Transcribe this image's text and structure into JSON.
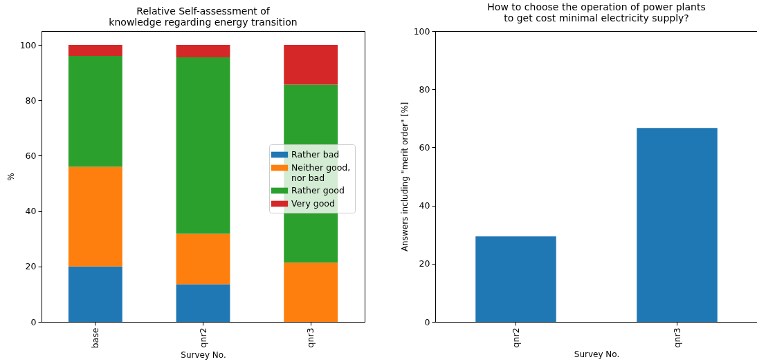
{
  "chart_data": [
    {
      "type": "bar",
      "title": "Relative Self-assessment of\nknowledge regarding energy transition",
      "xlabel": "Survey No.",
      "ylabel": "%",
      "categories": [
        "base",
        "qnr2",
        "qnr3"
      ],
      "stacked": true,
      "series": [
        {
          "name": "Rather bad",
          "color": "#1f77b4",
          "values": [
            20,
            13.6,
            0
          ]
        },
        {
          "name": "Neither good,\n nor bad",
          "color": "#ff7f0e",
          "values": [
            36,
            18.2,
            21.4
          ]
        },
        {
          "name": "Rather good",
          "color": "#2ca02c",
          "values": [
            40,
            63.7,
            64.3
          ]
        },
        {
          "name": "Very good",
          "color": "#d62728",
          "values": [
            4,
            4.5,
            14.3
          ]
        }
      ],
      "ylim": [
        0,
        105
      ],
      "yticks": [
        0,
        20,
        40,
        60,
        80,
        100
      ],
      "legend": "right"
    },
    {
      "type": "bar",
      "title": "How to choose the operation of power plants\nto get cost minimal electricity supply?",
      "xlabel": "Survey No.",
      "ylabel": "Answers including \"merit order\" [%]",
      "categories": [
        "qnr2",
        "qnr3"
      ],
      "values": [
        29.4,
        66.7
      ],
      "color": "#1f77b4",
      "ylim": [
        0,
        100
      ],
      "yticks": [
        0,
        20,
        40,
        60,
        80,
        100
      ]
    }
  ]
}
